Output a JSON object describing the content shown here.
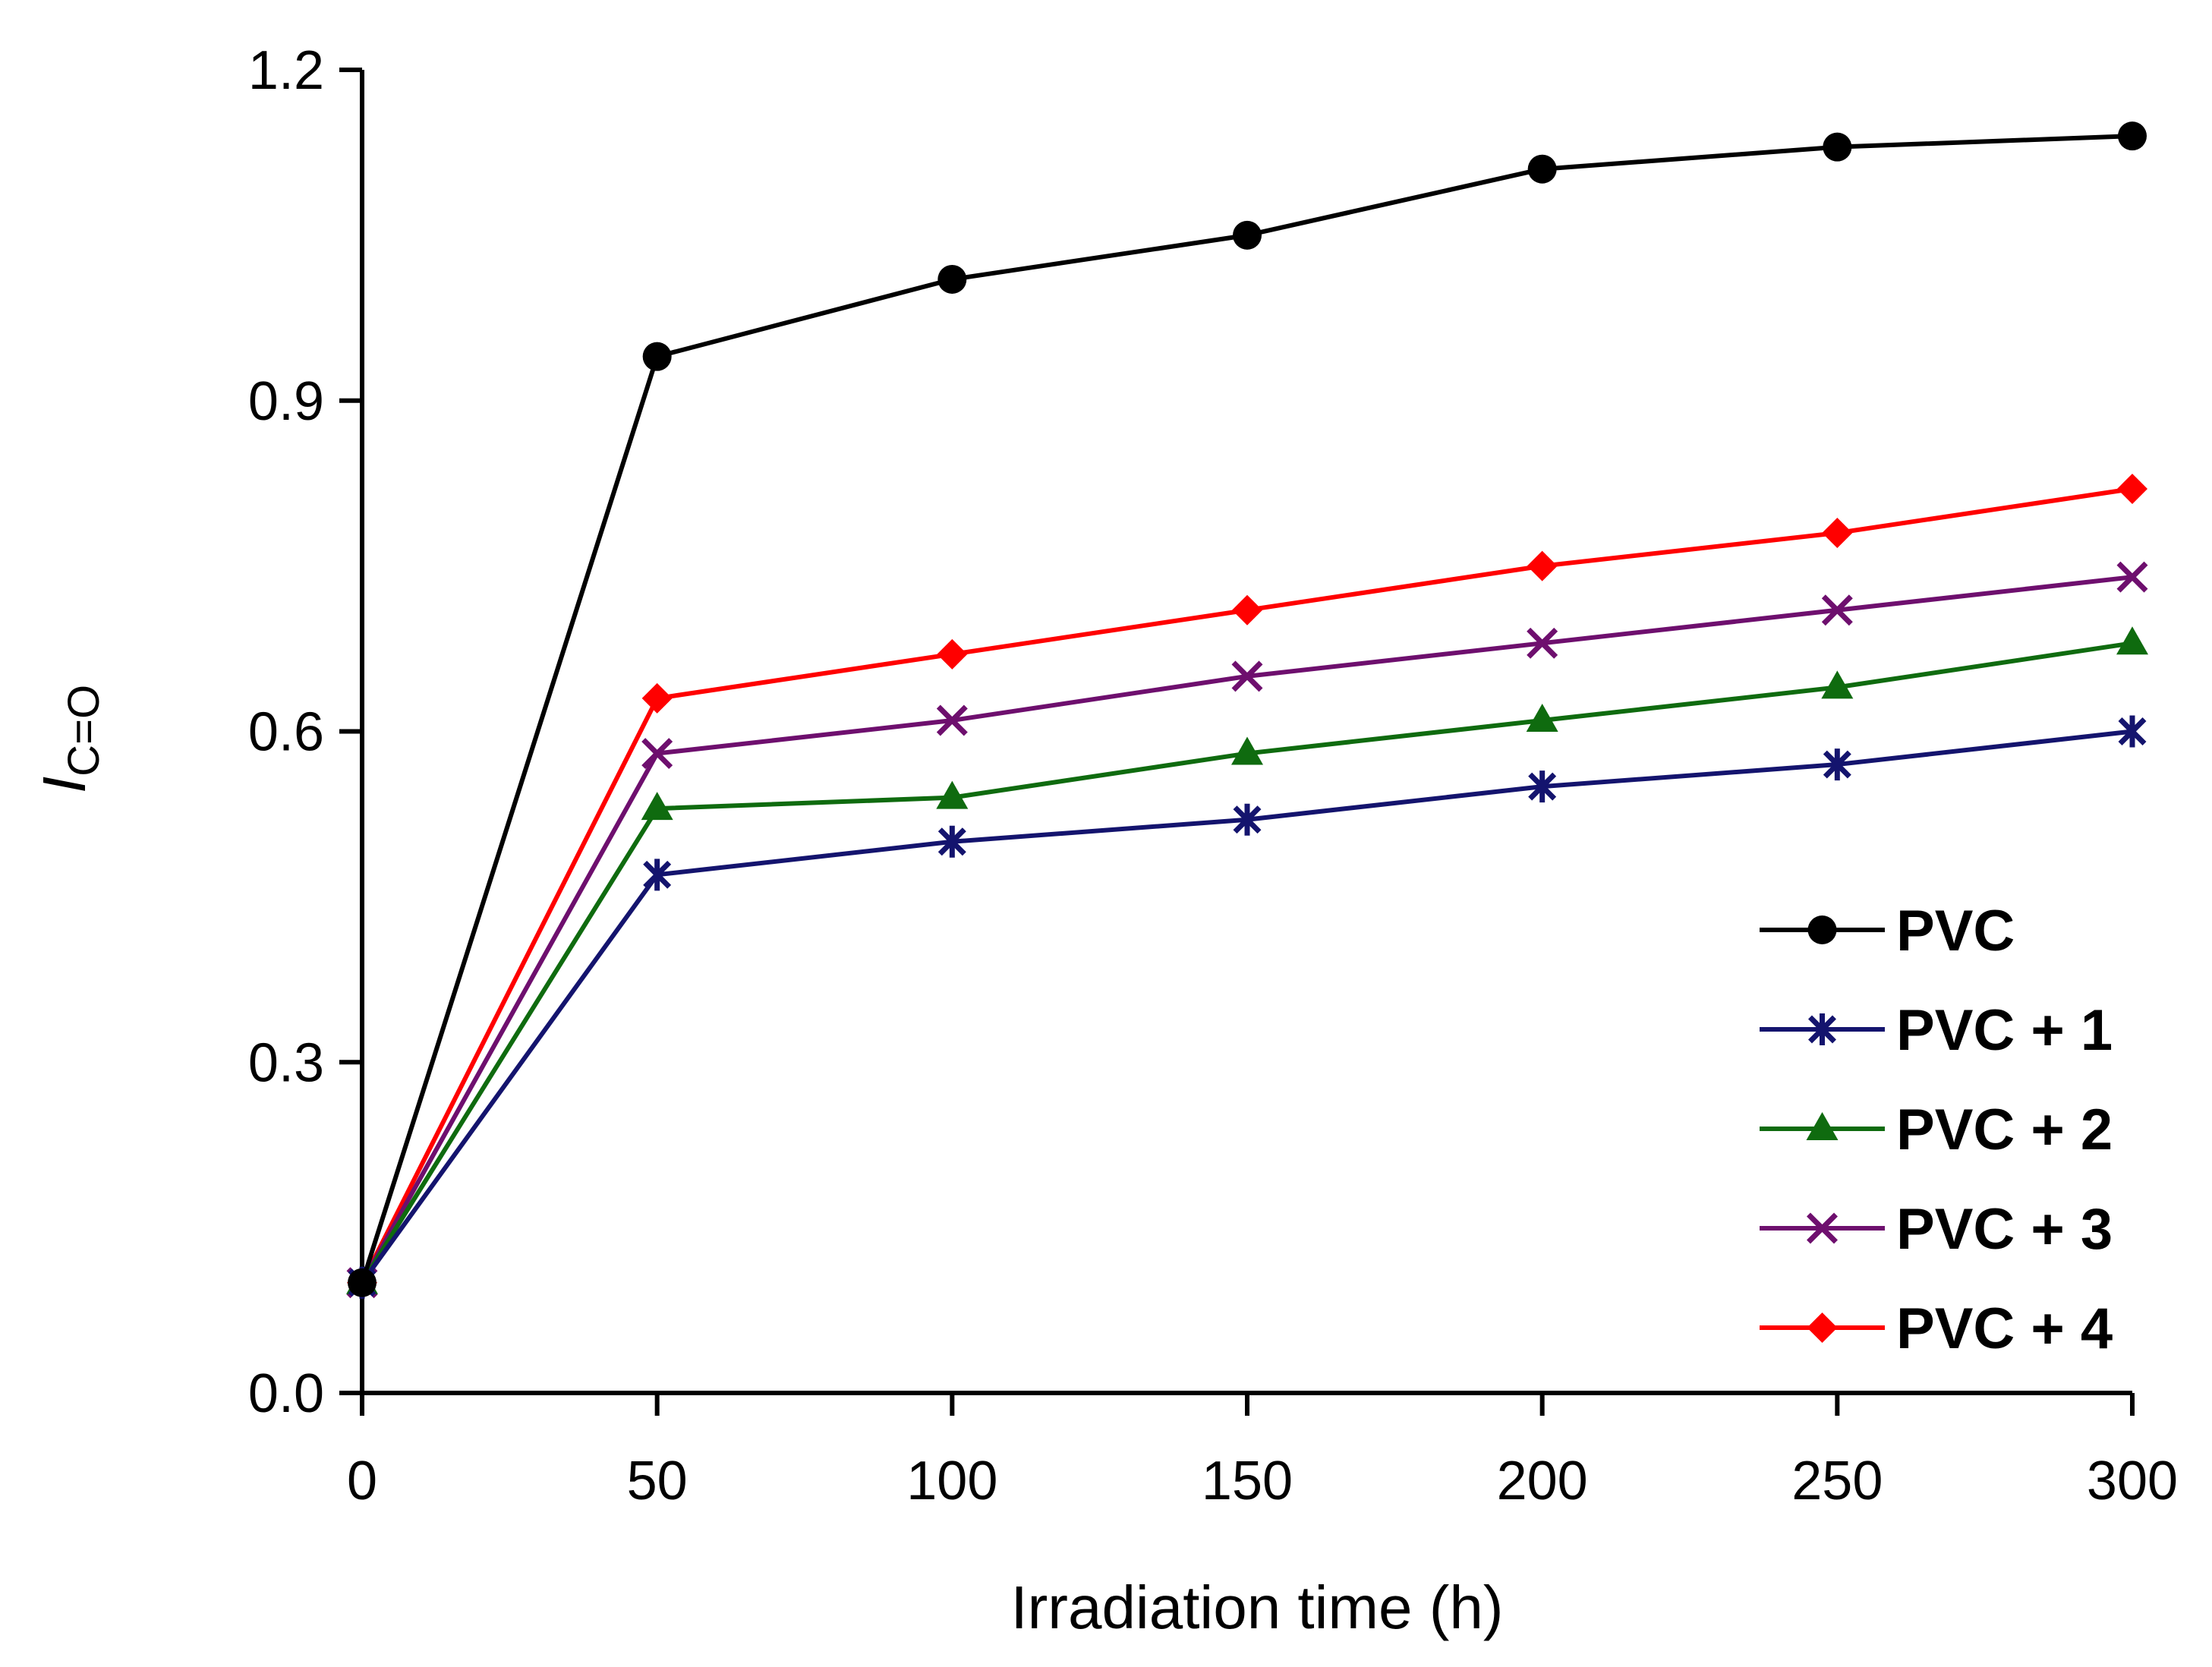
{
  "chart_data": {
    "type": "line",
    "title": "",
    "xlabel": "Irradiation time (h)",
    "ylabel": {
      "main": "I",
      "subscript": "C=O"
    },
    "x": [
      0,
      50,
      100,
      150,
      200,
      250,
      300
    ],
    "xlim": [
      0,
      300
    ],
    "ylim": [
      0,
      1.2
    ],
    "xticks": [
      "0",
      "50",
      "100",
      "150",
      "200",
      "250",
      "300"
    ],
    "yticks": [
      "0.0",
      "0.3",
      "0.6",
      "0.9",
      "1.2"
    ],
    "grid": false,
    "legend_position": "bottom-right",
    "series": [
      {
        "name": "PVC",
        "color": "#000000",
        "marker": "circle",
        "values": [
          0.1,
          0.94,
          1.01,
          1.05,
          1.11,
          1.13,
          1.14
        ]
      },
      {
        "name": "PVC + 1",
        "color": "#14146e",
        "marker": "asterisk",
        "values": [
          0.1,
          0.47,
          0.5,
          0.52,
          0.55,
          0.57,
          0.6
        ]
      },
      {
        "name": "PVC + 2",
        "color": "#0f6b0f",
        "marker": "triangle",
        "values": [
          0.1,
          0.53,
          0.54,
          0.58,
          0.61,
          0.64,
          0.68
        ]
      },
      {
        "name": "PVC + 3",
        "color": "#6e0f6e",
        "marker": "x",
        "values": [
          0.1,
          0.58,
          0.61,
          0.65,
          0.68,
          0.71,
          0.74
        ]
      },
      {
        "name": "PVC + 4",
        "color": "#ff0000",
        "marker": "diamond",
        "values": [
          0.1,
          0.63,
          0.67,
          0.71,
          0.75,
          0.78,
          0.82
        ]
      }
    ]
  }
}
